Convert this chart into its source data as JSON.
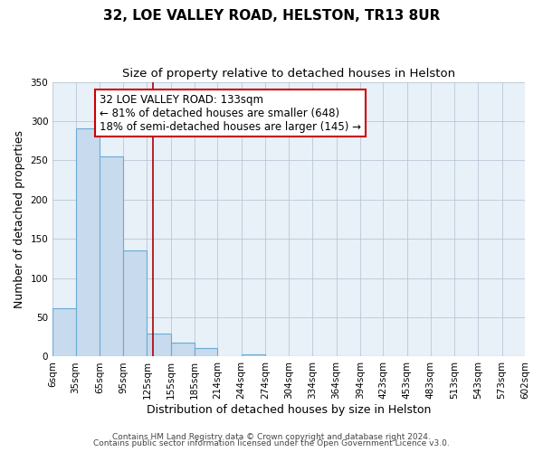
{
  "title": "32, LOE VALLEY ROAD, HELSTON, TR13 8UR",
  "subtitle": "Size of property relative to detached houses in Helston",
  "xlabel": "Distribution of detached houses by size in Helston",
  "ylabel": "Number of detached properties",
  "footer_line1": "Contains HM Land Registry data © Crown copyright and database right 2024.",
  "footer_line2": "Contains public sector information licensed under the Open Government Licence v3.0.",
  "bar_edges": [
    6,
    35,
    65,
    95,
    125,
    155,
    185,
    214,
    244,
    274,
    304,
    334,
    364,
    394,
    423,
    453,
    483,
    513,
    543,
    573,
    602
  ],
  "bar_heights": [
    62,
    291,
    255,
    135,
    29,
    18,
    11,
    0,
    3,
    0,
    0,
    0,
    0,
    0,
    0,
    0,
    1,
    0,
    0,
    0
  ],
  "bar_color": "#c8daee",
  "bar_edge_color": "#6aabd2",
  "plot_bg_color": "#e8f0f8",
  "property_value": 133,
  "annotation_line1": "32 LOE VALLEY ROAD: 133sqm",
  "annotation_line2": "← 81% of detached houses are smaller (648)",
  "annotation_line3": "18% of semi-detached houses are larger (145) →",
  "annotation_box_color": "white",
  "annotation_box_edge_color": "#cc0000",
  "red_line_color": "#aa0000",
  "ylim": [
    0,
    350
  ],
  "yticks": [
    0,
    50,
    100,
    150,
    200,
    250,
    300,
    350
  ],
  "xtick_labels": [
    "6sqm",
    "35sqm",
    "65sqm",
    "95sqm",
    "125sqm",
    "155sqm",
    "185sqm",
    "214sqm",
    "244sqm",
    "274sqm",
    "304sqm",
    "334sqm",
    "364sqm",
    "394sqm",
    "423sqm",
    "453sqm",
    "483sqm",
    "513sqm",
    "543sqm",
    "573sqm",
    "602sqm"
  ],
  "grid_color": "#b0c0d0",
  "background_color": "#ffffff",
  "title_fontsize": 11,
  "subtitle_fontsize": 9.5,
  "axis_label_fontsize": 9,
  "tick_fontsize": 7.5,
  "annotation_fontsize": 8.5,
  "footer_fontsize": 6.5
}
